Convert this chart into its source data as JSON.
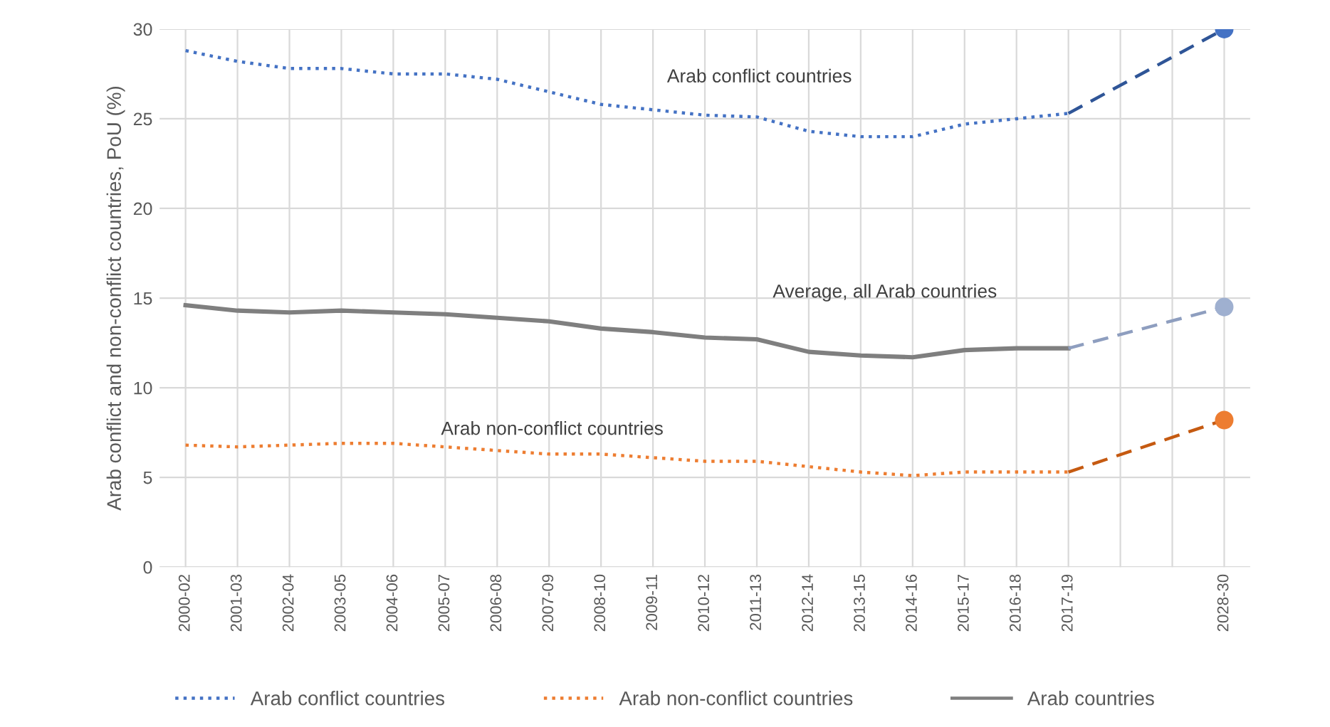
{
  "chart_data": {
    "type": "line",
    "ylabel": "Arab conflict and non-conflict countries, PoU (%)",
    "categories": [
      "2000-02",
      "2001-03",
      "2002-04",
      "2003-05",
      "2004-06",
      "2005-07",
      "2006-08",
      "2007-09",
      "2008-10",
      "2009-11",
      "2010-12",
      "2011-13",
      "2012-14",
      "2013-15",
      "2014-16",
      "2015-17",
      "2016-18",
      "2017-19",
      null,
      null,
      "2028-30"
    ],
    "series": [
      {
        "name": "Arab conflict countries",
        "color": "#4472c4",
        "line_style": "dotted",
        "values": [
          28.8,
          28.2,
          27.8,
          27.8,
          27.5,
          27.5,
          27.2,
          26.5,
          25.8,
          25.5,
          25.2,
          25.1,
          24.3,
          24.0,
          24.0,
          24.7,
          25.0,
          25.3,
          null,
          null,
          null
        ]
      },
      {
        "name": "Arab non-conflict countries",
        "color": "#ed7d31",
        "line_style": "dotted",
        "values": [
          6.8,
          6.7,
          6.8,
          6.9,
          6.9,
          6.7,
          6.5,
          6.3,
          6.3,
          6.1,
          5.9,
          5.9,
          5.6,
          5.3,
          5.1,
          5.3,
          5.3,
          5.3,
          null,
          null,
          null
        ]
      },
      {
        "name": "Arab countries",
        "color": "#7f7f7f",
        "line_style": "solid",
        "values": [
          14.6,
          14.3,
          14.2,
          14.3,
          14.2,
          14.1,
          13.9,
          13.7,
          13.3,
          13.1,
          12.8,
          12.7,
          12.0,
          11.8,
          11.7,
          12.1,
          12.2,
          12.2,
          null,
          null,
          null
        ]
      },
      {
        "color": "#2f5597",
        "line_style": "dashed",
        "values": [
          null,
          null,
          null,
          null,
          null,
          null,
          null,
          null,
          null,
          null,
          null,
          null,
          null,
          null,
          null,
          null,
          null,
          25.3,
          null,
          null,
          30.0
        ]
      },
      {
        "color": "#c55a11",
        "line_style": "dashed",
        "values": [
          null,
          null,
          null,
          null,
          null,
          null,
          null,
          null,
          null,
          null,
          null,
          null,
          null,
          null,
          null,
          null,
          null,
          5.3,
          null,
          null,
          8.2
        ]
      },
      {
        "color": "#8e9ebf",
        "line_style": "dashed",
        "values": [
          null,
          null,
          null,
          null,
          null,
          null,
          null,
          null,
          null,
          null,
          null,
          null,
          null,
          null,
          null,
          null,
          null,
          12.2,
          null,
          null,
          14.5
        ]
      },
      {
        "type": "scatter",
        "color": "#4472c4",
        "marker": "circle",
        "values": [
          null,
          null,
          null,
          null,
          null,
          null,
          null,
          null,
          null,
          null,
          null,
          null,
          null,
          null,
          null,
          null,
          null,
          null,
          null,
          null,
          30.0
        ]
      },
      {
        "type": "scatter",
        "color": "#ed7d31",
        "marker": "circle",
        "values": [
          null,
          null,
          null,
          null,
          null,
          null,
          null,
          null,
          null,
          null,
          null,
          null,
          null,
          null,
          null,
          null,
          null,
          null,
          null,
          null,
          8.2
        ]
      },
      {
        "type": "scatter",
        "color": "#9fb0d0",
        "marker": "circle",
        "values": [
          null,
          null,
          null,
          null,
          null,
          null,
          null,
          null,
          null,
          null,
          null,
          null,
          null,
          null,
          null,
          null,
          null,
          null,
          null,
          null,
          14.5
        ]
      }
    ],
    "annotations": [
      "Arab conflict countries",
      "Average, all Arab countries",
      "Arab non-conflict countries"
    ],
    "ylim": [
      0,
      30
    ],
    "yticks": [
      0,
      5,
      10,
      15,
      20,
      25,
      30
    ],
    "grid": true,
    "legend": "bottom"
  }
}
